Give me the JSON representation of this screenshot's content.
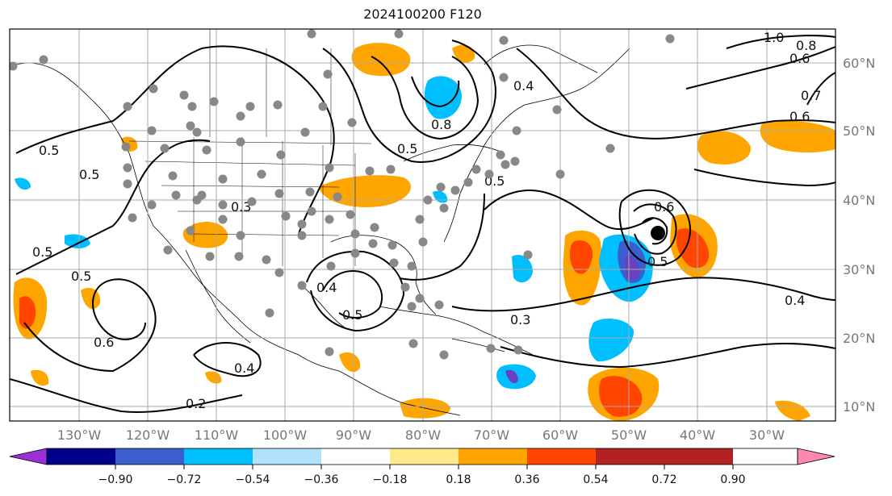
{
  "title": "2024100200 F120",
  "longitude_labels": [
    "130°W",
    "120°W",
    "110°W",
    "100°W",
    "90°W",
    "80°W",
    "70°W",
    "60°W",
    "50°W",
    "40°W",
    "30°W"
  ],
  "latitude_labels": [
    "60°N",
    "50°N",
    "40°N",
    "30°N",
    "20°N",
    "10°N"
  ],
  "contour_labels": [
    "0.5",
    "0.5",
    "0.5",
    "0.5",
    "0.6",
    "0.2",
    "0.4",
    "0.4",
    "0.5",
    "0.3",
    "0.8",
    "0.5",
    "0.4",
    "0.6",
    "0.5",
    "0.4",
    "0.6",
    "0.7",
    "1.0",
    "0.8",
    "0.6",
    "0.5",
    "0.3"
  ],
  "colorbar": {
    "ticks": [
      "−0.90",
      "−0.72",
      "−0.54",
      "−0.36",
      "−0.18",
      "0.18",
      "0.36",
      "0.54",
      "0.72",
      "0.90"
    ],
    "colors": [
      "#9b30d9",
      "#00008b",
      "#3a5fcd",
      "#00bfff",
      "#b0e2ff",
      "#ffffff",
      "#ffe88c",
      "#ffa500",
      "#ff4500",
      "#b22222",
      "#ff88b0"
    ]
  },
  "map_colors": {
    "orange": "#ffa500",
    "red_orange": "#ff4500",
    "sky_blue": "#00bfff",
    "royal_blue": "#3a5fcd",
    "purple": "#6a3fc0",
    "station_gray": "#888888",
    "grid_gray": "#aaaaaa",
    "center_marker": "#000000"
  }
}
